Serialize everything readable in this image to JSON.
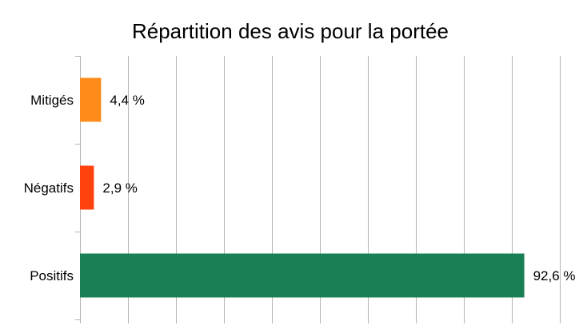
{
  "chart_data": {
    "type": "bar",
    "orientation": "horizontal",
    "title": "Répartition des avis pour la portée",
    "xlabel": "",
    "ylabel": "",
    "categories": [
      "Mitigés",
      "Négatifs",
      "Positifs"
    ],
    "values": [
      4.4,
      2.9,
      92.6
    ],
    "value_labels": [
      "4,4 %",
      "2,9 %",
      "92,6 %"
    ],
    "colors": [
      "#ff8c1a",
      "#ff420e",
      "#1a7f55"
    ],
    "xlim": [
      0,
      100
    ],
    "grid": true,
    "legend": "none"
  }
}
